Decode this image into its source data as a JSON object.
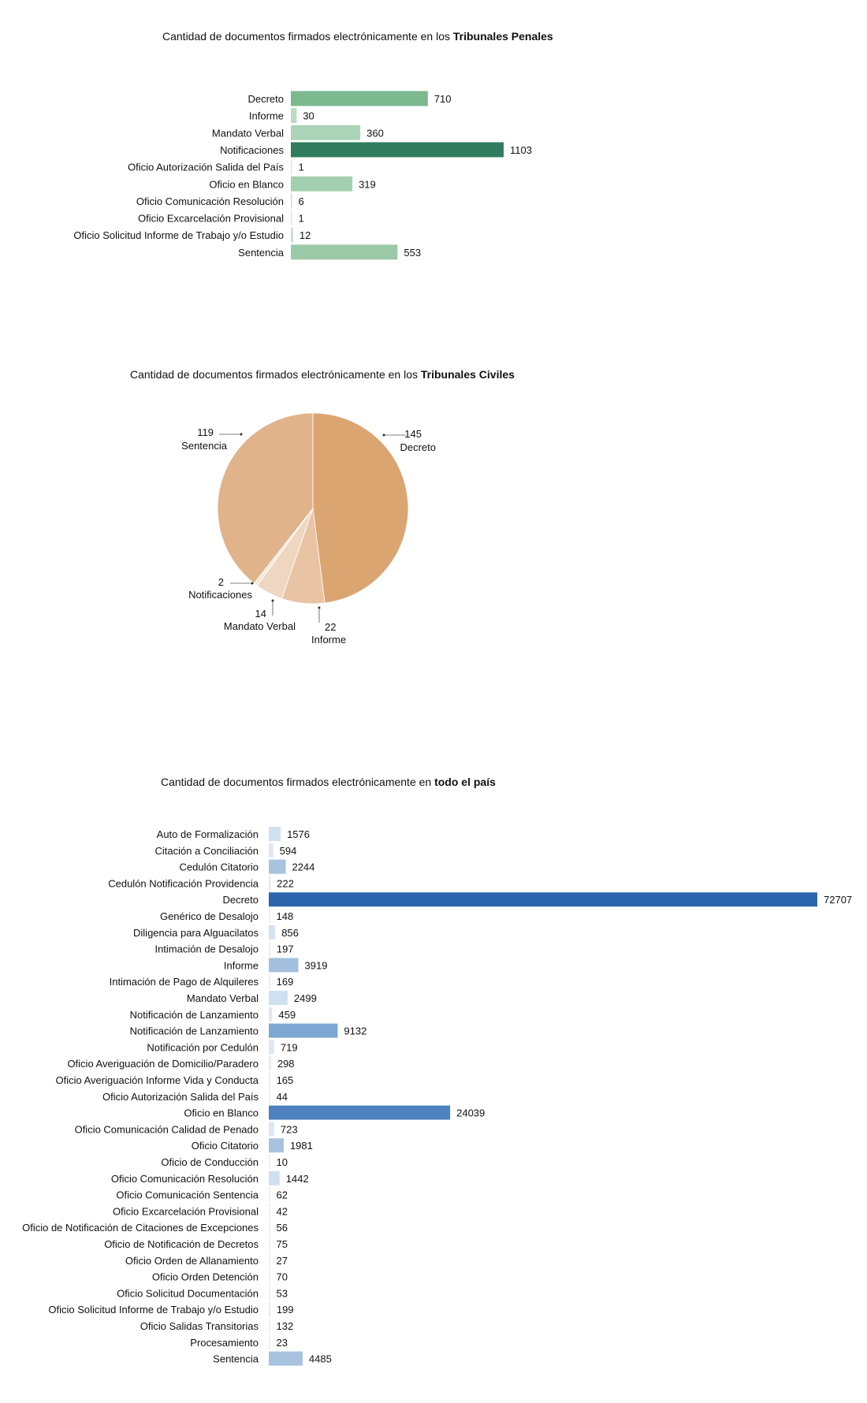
{
  "chart_data": [
    {
      "type": "bar",
      "orientation": "horizontal",
      "title_prefix": "Cantidad de documentos firmados electrónicamente en los ",
      "title_bold": "Tribunales Penales",
      "categories": [
        "Decreto",
        "Informe",
        "Mandato Verbal",
        "Notificaciones",
        "Oficio Autorización Salida del País",
        "Oficio en Blanco",
        "Oficio Comunicación Resolución",
        "Oficio Excarcelación Provisional",
        "Oficio Solicitud Informe de Trabajo y/o Estudio",
        "Sentencia"
      ],
      "values": [
        710,
        30,
        360,
        1103,
        1,
        319,
        6,
        1,
        12,
        553
      ],
      "colors": [
        "#7bb88e",
        "#b9dcc4",
        "#acd4b8",
        "#2f7d5e",
        "#d6ebdd",
        "#a3cfb1",
        "#c8e4d0",
        "#d6ebdd",
        "#c8e4d0",
        "#9ccaa8"
      ]
    },
    {
      "type": "pie",
      "title_prefix": "Cantidad de documentos firmados electrónicamente en los ",
      "title_bold": "Tribunales Civiles",
      "slices": [
        {
          "label": "Decreto",
          "value": 145,
          "color": "#dba571"
        },
        {
          "label": "Informe",
          "value": 22,
          "color": "#e9c4a4"
        },
        {
          "label": "Mandato Verbal",
          "value": 14,
          "color": "#efd6c0"
        },
        {
          "label": "Notificaciones",
          "value": 2,
          "color": "#f6e8db"
        },
        {
          "label": "Sentencia",
          "value": 119,
          "color": "#e1b38b"
        }
      ]
    },
    {
      "type": "bar",
      "orientation": "horizontal",
      "title_prefix": "Cantidad de documentos firmados electrónicamente en ",
      "title_bold": "todo el país",
      "categories": [
        "Auto de Formalización",
        "Citación a Conciliación",
        "Cedulón Citatorio",
        "Cedulón Notificación Providencia",
        "Decreto",
        "Genérico de Desalojo",
        "Diligencia para Alguacilatos",
        "Intimación de Desalojo",
        "Informe",
        "Intimación de Pago de Alquileres",
        "Mandato Verbal",
        "Notificación de Lanzamiento",
        "Notificación de Lanzamiento",
        "Notificación por Cedulón",
        "Oficio Averiguación de Domicilio/Paradero",
        "Oficio Averiguación Informe Vida y Conducta",
        "Oficio Autorización Salida del País",
        "Oficio en Blanco",
        "Oficio Comunicación Calidad de Penado",
        "Oficio Citatorio",
        "Oficio de Conducción",
        "Oficio Comunicación Resolución",
        "Oficio Comunicación Sentencia",
        "Oficio Excarcelación Provisional",
        "Oficio de Notificación de Citaciones de Excepciones",
        "Oficio de Notificación de Decretos",
        "Oficio Orden de Allanamiento",
        "Oficio Orden Detención",
        "Oficio Solicitud Documentación",
        "Oficio Solicitud Informe de Trabajo y/o Estudio",
        "Oficio Salidas Transitorias",
        "Procesamiento",
        "Sentencia"
      ],
      "values": [
        1576,
        594,
        2244,
        222,
        72707,
        148,
        856,
        197,
        3919,
        169,
        2499,
        459,
        9132,
        719,
        298,
        165,
        44,
        24039,
        723,
        1981,
        10,
        1442,
        62,
        42,
        56,
        75,
        27,
        70,
        53,
        199,
        132,
        23,
        4485
      ],
      "colors": [
        "#d0e0f0",
        "#dce8f4",
        "#a7c3e0",
        "#dce8f4",
        "#2b66ad",
        "#e2ecf6",
        "#d4e2f1",
        "#e2ecf6",
        "#a3c0de",
        "#e2ecf6",
        "#d0e0f0",
        "#dce8f4",
        "#7fa7d3",
        "#dce8f4",
        "#e2ecf6",
        "#e2ecf6",
        "#e2ecf6",
        "#4d81bf",
        "#dce8f4",
        "#a7c3e0",
        "#e2ecf6",
        "#d0e0f0",
        "#e2ecf6",
        "#e2ecf6",
        "#e2ecf6",
        "#e2ecf6",
        "#e2ecf6",
        "#e2ecf6",
        "#e2ecf6",
        "#e2ecf6",
        "#e2ecf6",
        "#e2ecf6",
        "#a7c3e0"
      ]
    }
  ]
}
